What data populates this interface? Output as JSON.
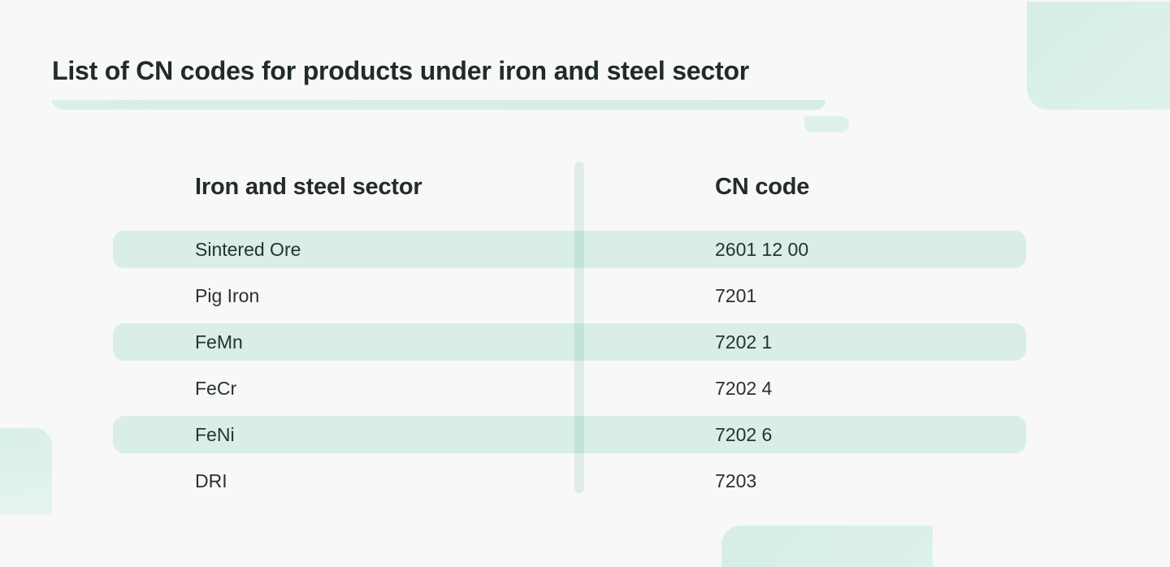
{
  "chart_data": {
    "type": "table",
    "title": "List of CN codes for products under iron and steel sector",
    "columns": [
      "Iron and steel sector",
      "CN code"
    ],
    "rows": [
      [
        "Sintered Ore",
        "2601 12 00"
      ],
      [
        "Pig Iron",
        "7201"
      ],
      [
        "FeMn",
        "7202 1"
      ],
      [
        "FeCr",
        "7202 4"
      ],
      [
        "FeNi",
        "7202 6"
      ],
      [
        "DRI",
        "7203"
      ]
    ],
    "highlighted_row_indices": [
      0,
      2,
      4
    ],
    "grid": false,
    "legend_position": "none"
  },
  "colors": {
    "page_background": "#f7f8f7",
    "row_highlight_mint": "#d8eee7",
    "decor_mint": "#d6eee6",
    "decor_mint_light": "#e6f5ee",
    "divider_mint": "#e6f4ed",
    "title_text": "#212b28",
    "body_text": "#29322e"
  }
}
